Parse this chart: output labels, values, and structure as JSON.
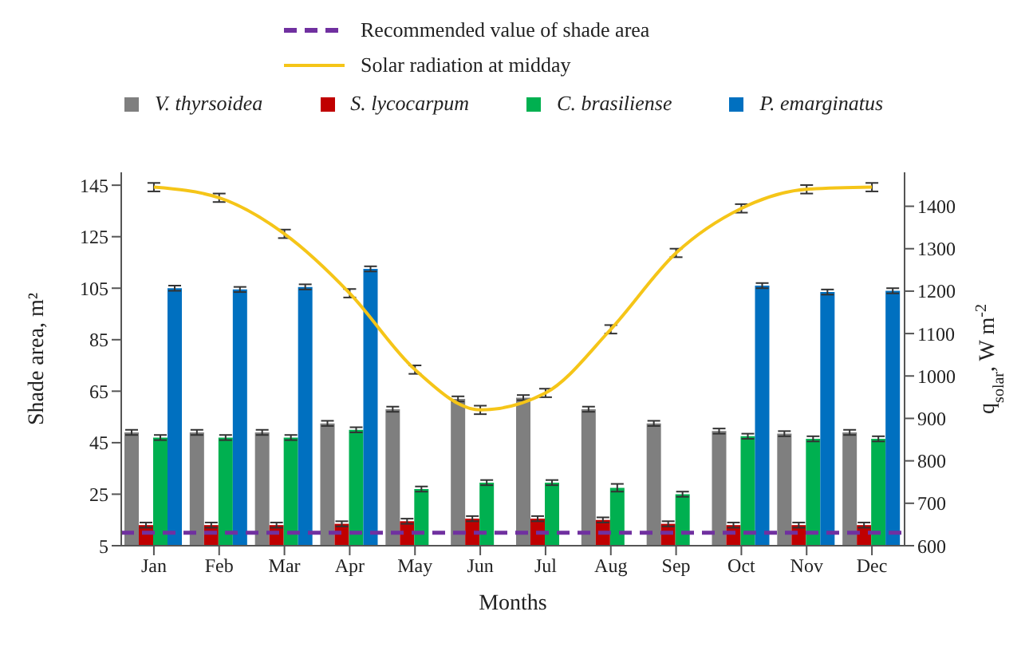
{
  "chart_data": {
    "type": "bar",
    "xlabel": "Months",
    "ylabel": "Shade area, m²",
    "y2label": "q$_{solar}$, W m$^{-2}$",
    "categories": [
      "Jan",
      "Feb",
      "Mar",
      "Apr",
      "May",
      "Jun",
      "Jul",
      "Aug",
      "Sep",
      "Oct",
      "Nov",
      "Dec"
    ],
    "series": [
      {
        "name": "V. thyrsoidea",
        "color": "#7f7f7f",
        "values": [
          49,
          49,
          49,
          52.5,
          58,
          62,
          62.5,
          58,
          52.5,
          49.5,
          48.5,
          49
        ],
        "errors": [
          1,
          1,
          1,
          1,
          1,
          1,
          1,
          1,
          1,
          1,
          1,
          1
        ]
      },
      {
        "name": "S. lycocarpum",
        "color": "#c00000",
        "values": [
          13,
          13,
          13,
          13.5,
          14.5,
          15.5,
          15.5,
          15,
          13.5,
          13,
          13,
          13
        ],
        "errors": [
          1,
          1,
          1,
          1,
          1,
          1,
          1,
          1,
          1,
          1,
          1,
          1
        ]
      },
      {
        "name": "C. brasiliense",
        "color": "#00b050",
        "values": [
          47,
          47,
          47,
          50,
          27,
          29.5,
          29.5,
          27.5,
          25,
          47.5,
          46.5,
          46.5
        ],
        "errors": [
          1,
          1,
          1,
          1,
          1,
          1,
          1,
          1.5,
          1,
          1,
          1,
          1
        ]
      },
      {
        "name": "P. emarginatus",
        "color": "#0070c0",
        "values": [
          105,
          104.5,
          105.5,
          112.5,
          null,
          null,
          null,
          null,
          null,
          106,
          103.5,
          104
        ],
        "errors": [
          1,
          1,
          1,
          1,
          null,
          null,
          null,
          null,
          null,
          1,
          1,
          1
        ]
      },
      {
        "name": "Solar radiation at midday",
        "type": "line",
        "axis": "y2",
        "color": "#f5c518",
        "values": [
          1445,
          1420,
          1335,
          1195,
          1015,
          920,
          960,
          1110,
          1290,
          1395,
          1440,
          1445
        ],
        "errors": [
          10,
          10,
          10,
          10,
          10,
          10,
          10,
          10,
          10,
          10,
          10,
          10
        ]
      }
    ],
    "ref_lines": [
      {
        "axis": "y",
        "value": 10,
        "label": "Recommended value of shade area",
        "color": "#7030a0",
        "line_style": "dashed"
      }
    ],
    "ylim": [
      5,
      150
    ],
    "yticks": [
      5,
      25,
      45,
      65,
      85,
      105,
      125,
      145
    ],
    "y2lim": [
      600,
      1480
    ],
    "y2ticks": [
      600,
      700,
      800,
      900,
      1000,
      1100,
      1200,
      1300,
      1400
    ],
    "grid": false,
    "legend": "top",
    "marker": "none",
    "line_style": "solid"
  }
}
